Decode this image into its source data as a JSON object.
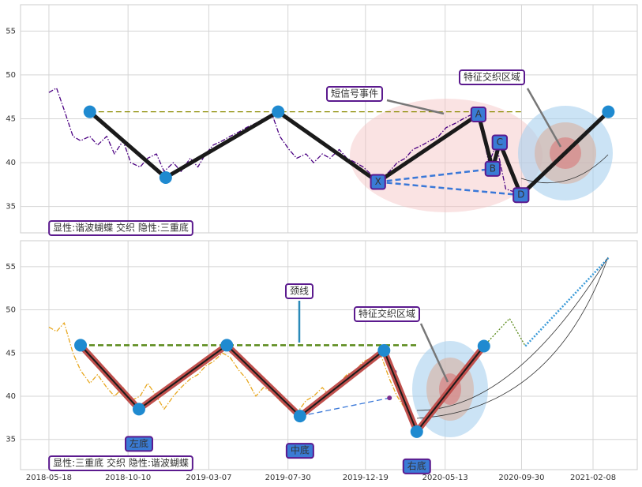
{
  "chart_data": [
    {
      "type": "line",
      "ylim": [
        32,
        58
      ],
      "yticks": [
        35,
        40,
        45,
        50,
        55
      ],
      "xlim": [
        "2018-03-27",
        "2021-04-30"
      ],
      "xticks": [
        "2018-05-18",
        "2018-10-10",
        "2019-03-07",
        "2019-07-30",
        "2019-12-19",
        "2020-05-13",
        "2020-09-30",
        "2021-02-08"
      ],
      "show_xtick_labels": false,
      "grid": true,
      "point_label_position": "on",
      "annotations": [
        "短信号事件",
        "特征交织区域"
      ],
      "footer": "显性:谐波蝴蝶 交织 隐性:三重底",
      "series": [
        {
          "color": "#4b0082",
          "line": "thin",
          "dash": "dashdot",
          "marker": "none",
          "x": [
            "2018-05-18",
            "2018-06-01",
            "2018-06-15",
            "2018-07-01",
            "2018-07-15",
            "2018-08-01",
            "2018-08-15",
            "2018-09-01",
            "2018-09-15",
            "2018-10-01",
            "2018-10-15",
            "2018-11-01",
            "2018-11-15",
            "2018-12-01",
            "2018-12-15",
            "2019-01-01",
            "2019-01-15",
            "2019-02-01",
            "2019-02-15",
            "2019-03-01",
            "2019-03-15",
            "2019-04-01",
            "2019-04-15",
            "2019-05-01",
            "2019-05-15",
            "2019-06-01",
            "2019-06-15",
            "2019-07-01",
            "2019-07-15",
            "2019-08-01",
            "2019-08-15",
            "2019-09-01",
            "2019-09-15",
            "2019-10-01",
            "2019-10-15",
            "2019-11-01",
            "2019-11-15",
            "2019-12-01",
            "2019-12-15",
            "2020-01-01",
            "2020-01-15",
            "2020-02-01",
            "2020-02-15",
            "2020-03-01",
            "2020-03-15",
            "2020-04-01",
            "2020-04-15",
            "2020-05-01",
            "2020-05-15",
            "2020-06-01",
            "2020-06-15",
            "2020-07-01",
            "2020-07-15",
            "2020-08-01",
            "2020-08-15",
            "2020-09-01",
            "2020-09-25"
          ],
          "values": [
            48,
            48.5,
            46,
            43,
            42.5,
            43,
            42,
            43,
            41,
            42.5,
            40,
            39.5,
            40.5,
            41,
            39,
            40,
            39,
            40.5,
            39.5,
            41,
            42,
            42.5,
            43,
            43.5,
            44,
            44.5,
            45,
            45.5,
            43,
            41.5,
            40.5,
            41,
            40,
            41,
            40.5,
            41.5,
            40.5,
            40,
            39.5,
            38.5,
            38,
            39,
            40,
            40.5,
            41.5,
            42,
            42.5,
            43,
            44,
            44.5,
            45,
            45.5,
            45,
            40,
            42,
            37,
            36.5
          ]
        },
        {
          "color": "#8b8b00",
          "line": "thin",
          "dash": "dashed",
          "marker": "none",
          "x": [
            "2018-08-01",
            "2020-09-29"
          ],
          "values": [
            45.8,
            45.8
          ]
        },
        {
          "color": "#3a78d8",
          "line": "medium",
          "dash": "dashed",
          "marker": "none",
          "x": [
            "2020-01-11",
            "2020-08-08"
          ],
          "values": [
            37.8,
            39.3
          ]
        },
        {
          "color": "#3a78d8",
          "line": "medium",
          "dash": "dashed",
          "marker": "none",
          "x": [
            "2020-01-11",
            "2020-09-29"
          ],
          "values": [
            37.8,
            36.3
          ]
        },
        {
          "color": "#1a1a1a",
          "line": "thick",
          "dash": "solid",
          "marker": "circle",
          "marker_color": "#1f8ad0",
          "x": [
            "2018-08-01",
            "2018-12-18",
            "2019-07-12",
            "2020-01-11",
            "2020-07-13",
            "2020-08-08",
            "2020-08-21",
            "2020-09-29",
            "2021-03-08"
          ],
          "values": [
            45.8,
            38.3,
            45.8,
            37.8,
            45.5,
            39.3,
            42.3,
            36.3,
            45.8
          ],
          "point_labels": [
            null,
            null,
            null,
            "X",
            "A",
            "B",
            "C",
            "D",
            null
          ]
        }
      ]
    },
    {
      "type": "line",
      "ylim": [
        31.5,
        58
      ],
      "yticks": [
        35,
        40,
        45,
        50,
        55
      ],
      "xlim": [
        "2018-03-27",
        "2021-04-30"
      ],
      "xticks": [
        "2018-05-18",
        "2018-10-10",
        "2019-03-07",
        "2019-07-30",
        "2019-12-19",
        "2020-05-13",
        "2020-09-30",
        "2021-02-08"
      ],
      "show_xtick_labels": true,
      "grid": true,
      "point_label_position": "below",
      "annotations": [
        "颈线",
        "特征交织区域"
      ],
      "footer": "显性:三重底 交织 隐性:谐波蝴蝶",
      "series": [
        {
          "color": "#e8a820",
          "line": "thin",
          "dash": "dashdot",
          "marker": "none",
          "x": [
            "2018-05-18",
            "2018-06-01",
            "2018-06-15",
            "2018-07-01",
            "2018-07-15",
            "2018-08-01",
            "2018-08-15",
            "2018-09-01",
            "2018-09-15",
            "2018-10-01",
            "2018-10-15",
            "2018-11-01",
            "2018-11-15",
            "2018-12-01",
            "2018-12-15",
            "2019-01-01",
            "2019-01-15",
            "2019-02-01",
            "2019-02-15",
            "2019-03-01",
            "2019-03-15",
            "2019-04-01",
            "2019-04-15",
            "2019-05-01",
            "2019-05-15",
            "2019-06-01",
            "2019-06-15",
            "2019-07-01",
            "2019-07-15",
            "2019-08-01",
            "2019-08-15",
            "2019-09-01",
            "2019-09-15",
            "2019-10-01",
            "2019-10-15",
            "2019-11-01",
            "2019-11-15",
            "2019-12-01",
            "2019-12-15",
            "2020-01-01",
            "2020-01-15",
            "2020-02-01",
            "2020-02-15",
            "2020-03-01",
            "2020-03-10"
          ],
          "values": [
            48,
            47.5,
            48.5,
            45,
            43,
            41.5,
            42.5,
            41,
            40,
            41,
            39.5,
            40,
            41.5,
            40,
            38.5,
            40,
            41,
            42,
            42.5,
            43.5,
            44,
            45,
            44.5,
            43,
            42,
            40,
            41,
            40.5,
            39.5,
            38.5,
            38,
            39.5,
            40,
            41,
            40,
            41.5,
            42.5,
            43,
            44,
            44.5,
            45,
            42,
            40,
            38.5,
            38
          ]
        },
        {
          "color": "#5a8a1a",
          "line": "medium",
          "dash": "dashed",
          "marker": "none",
          "x": [
            "2018-07-15",
            "2020-03-22"
          ],
          "values": [
            45.9,
            45.9
          ]
        },
        {
          "color": "#3a78d8",
          "line": "thin",
          "dash": "dashed",
          "marker": "none",
          "x": [
            "2019-08-21",
            "2020-02-01"
          ],
          "values": [
            37.7,
            39.8
          ]
        },
        {
          "color": "#7b2d8e",
          "line": "none",
          "dash": "solid",
          "marker": "dot",
          "marker_color": "#7b2d8e",
          "x": [
            "2020-02-01",
            "2020-02-10"
          ],
          "values": [
            39.8,
            42.8
          ]
        },
        {
          "color": "#5a8a1a",
          "line": "thin",
          "dash": "dotted",
          "marker": "none",
          "x": [
            "2020-07-23",
            "2020-09-08",
            "2020-10-07"
          ],
          "values": [
            45.8,
            49,
            45.8
          ]
        },
        {
          "color": "#3a9ad8",
          "line": "medium",
          "dash": "dotted",
          "marker": "none",
          "x": [
            "2020-10-07",
            "2021-03-08"
          ],
          "values": [
            45.8,
            56
          ]
        },
        {
          "color": "#c0504d",
          "inner_color": "#1a1a1a",
          "line": "thick",
          "dash": "solid",
          "marker": "circle",
          "marker_color": "#1f8ad0",
          "x": [
            "2018-07-15",
            "2018-10-30",
            "2019-04-09",
            "2019-08-21",
            "2020-01-22",
            "2020-03-22",
            "2020-07-23"
          ],
          "values": [
            45.9,
            38.5,
            45.9,
            37.7,
            45.3,
            35.9,
            45.8
          ],
          "point_labels": [
            null,
            "左底",
            null,
            "中底",
            null,
            "右底",
            null
          ]
        }
      ]
    }
  ]
}
